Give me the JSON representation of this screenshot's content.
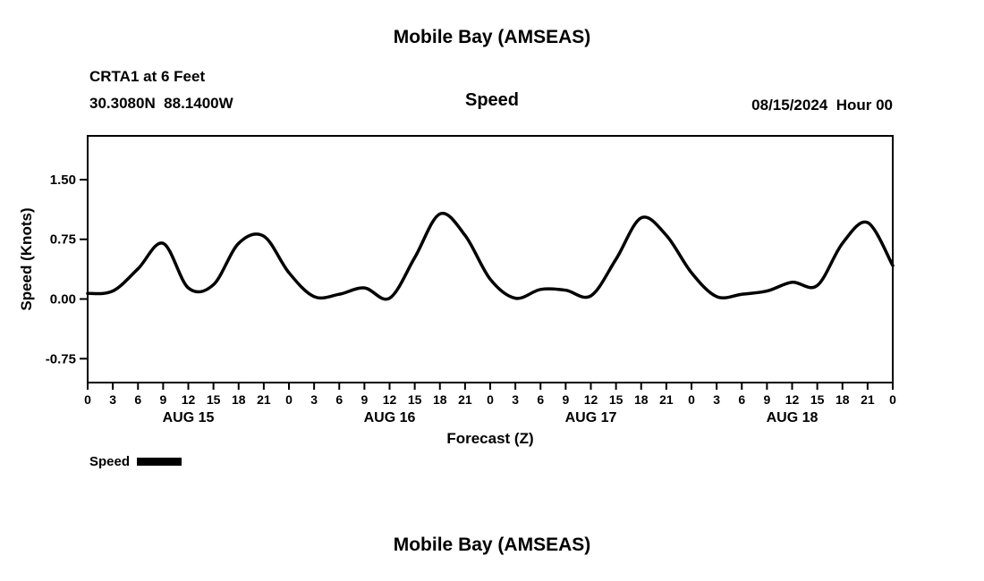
{
  "page": {
    "title": "Mobile Bay (AMSEAS)",
    "station_line1": "CRTA1 at 6 Feet",
    "station_line2": "30.3080N  88.1400W",
    "panel_title": "Speed",
    "run_label": "08/15/2024  Hour 00",
    "ylabel": "Speed (Knots)",
    "xlabel": "Forecast (Z)",
    "legend_label": "Speed",
    "next_chart_title": "Mobile Bay (AMSEAS)"
  },
  "chart_data": {
    "type": "line",
    "title": "Speed",
    "series_name": "Speed",
    "xlabel": "Forecast (Z)",
    "ylabel": "Speed (Knots)",
    "x_hours": [
      0,
      3,
      6,
      9,
      12,
      15,
      18,
      21,
      24,
      27,
      30,
      33,
      36,
      39,
      42,
      45,
      48,
      51,
      54,
      57,
      60,
      63,
      66,
      69,
      72,
      75,
      78,
      81,
      84,
      87,
      90,
      93,
      96
    ],
    "values": [
      0.07,
      0.1,
      0.38,
      0.7,
      0.14,
      0.18,
      0.7,
      0.79,
      0.33,
      0.03,
      0.06,
      0.14,
      0.01,
      0.52,
      1.07,
      0.8,
      0.25,
      0.01,
      0.12,
      0.11,
      0.04,
      0.5,
      1.02,
      0.8,
      0.33,
      0.03,
      0.06,
      0.1,
      0.21,
      0.17,
      0.7,
      0.96,
      0.42
    ],
    "x_range_hours": [
      0,
      96
    ],
    "ylim": [
      -1.05,
      2.05
    ],
    "yticks": [
      -0.75,
      0.0,
      0.75,
      1.5
    ],
    "ytick_labels": [
      "-0.75",
      "0.00",
      "0.75",
      "1.50"
    ],
    "xtick_step_hours": 3,
    "xtick_labels_cycle": [
      "0",
      "3",
      "6",
      "9",
      "12",
      "15",
      "18",
      "21"
    ],
    "xtick_final_label": "0",
    "day_labels": [
      {
        "label": "AUG 15",
        "center_hour": 12
      },
      {
        "label": "AUG 16",
        "center_hour": 36
      },
      {
        "label": "AUG 17",
        "center_hour": 60
      },
      {
        "label": "AUG 18",
        "center_hour": 84
      }
    ],
    "grid": false,
    "legend_position": "bottom-left",
    "line_color": "#000000",
    "line_width": 3.5
  }
}
